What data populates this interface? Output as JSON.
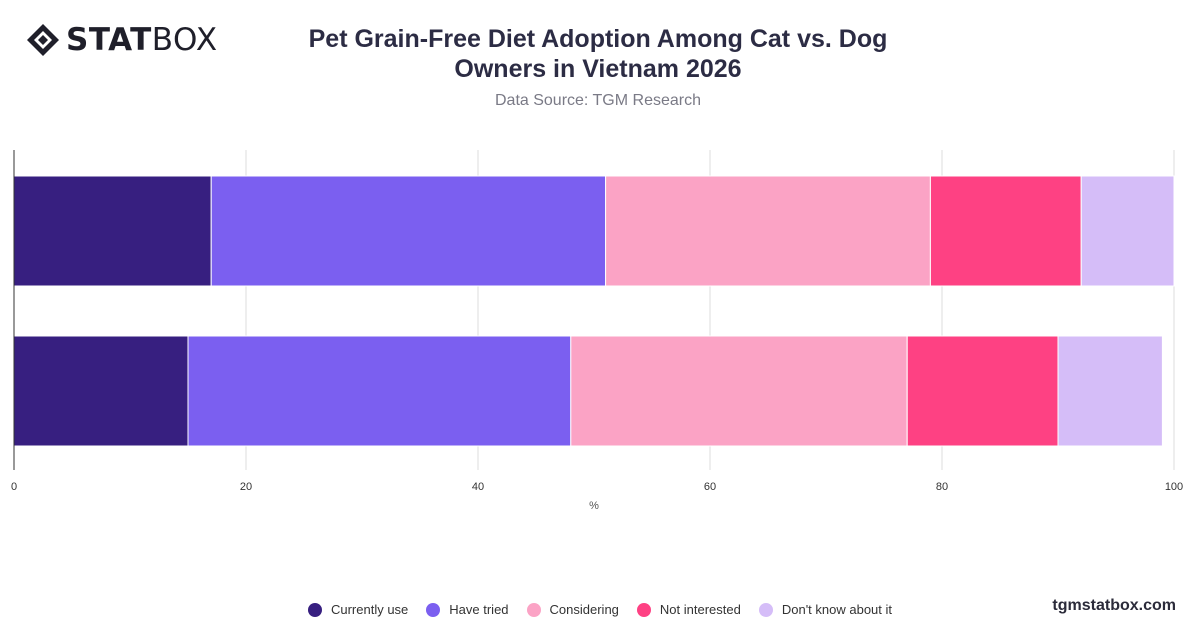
{
  "header": {
    "logo_text_bold": "STAT",
    "logo_text_light": "BOX",
    "title_line1": "Pet Grain-Free Diet Adoption Among Cat vs. Dog",
    "title_line2": "Owners in Vietnam 2026",
    "subtitle": "Data Source: TGM Research"
  },
  "footer": {
    "watermark": "tgmstatbox.com"
  },
  "chart_data": {
    "type": "bar",
    "orientation": "horizontal",
    "stacked": true,
    "title": "Pet Grain-Free Diet Adoption Among Cat vs. Dog Owners in Vietnam 2026",
    "xlabel": "%",
    "xlim": [
      0,
      100
    ],
    "xticks": [
      "0",
      "20",
      "40",
      "60",
      "80",
      "100"
    ],
    "categories": [
      "",
      ""
    ],
    "grid": "vertical",
    "legend_position": "bottom",
    "series": [
      {
        "name": "Currently use",
        "color": "#371f80",
        "values": [
          17,
          15
        ]
      },
      {
        "name": "Have tried",
        "color": "#7b5ff0",
        "values": [
          34,
          33
        ]
      },
      {
        "name": "Considering",
        "color": "#fba3c5",
        "values": [
          28,
          29
        ]
      },
      {
        "name": "Not interested",
        "color": "#fe4183",
        "values": [
          13,
          13
        ]
      },
      {
        "name": "Don't know about it",
        "color": "#d5bdf8",
        "values": [
          8,
          9
        ]
      }
    ]
  }
}
